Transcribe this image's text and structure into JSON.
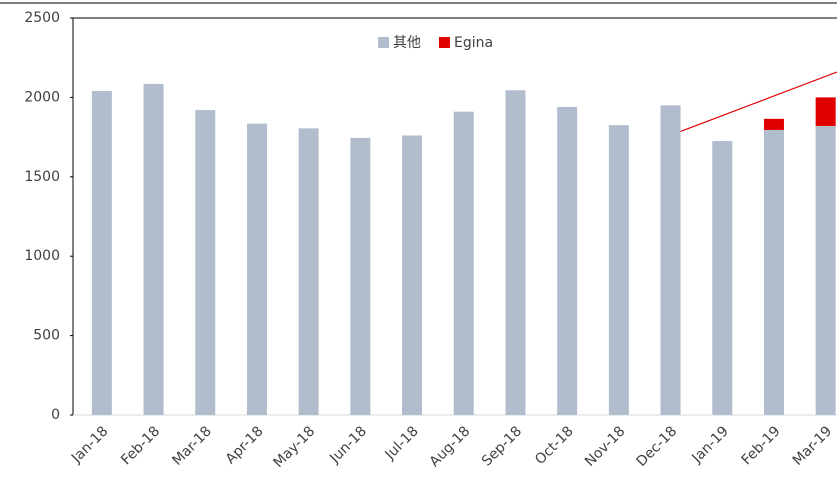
{
  "chart_data": {
    "type": "stacked_bar",
    "categories": [
      "Jan-18",
      "Feb-18",
      "Mar-18",
      "Apr-18",
      "May-18",
      "Jun-18",
      "Jul-18",
      "Aug-18",
      "Sep-18",
      "Oct-18",
      "Nov-18",
      "Dec-18",
      "Jan-19",
      "Feb-19",
      "Mar-19"
    ],
    "series": [
      {
        "name": "其他",
        "color": "#b1bccc",
        "values": [
          2040,
          2085,
          1920,
          1835,
          1805,
          1745,
          1760,
          1910,
          2045,
          1940,
          1825,
          1950,
          1725,
          1795,
          1820
        ]
      },
      {
        "name": "Egina",
        "color": "#e00000",
        "values": [
          null,
          null,
          null,
          null,
          null,
          null,
          null,
          null,
          null,
          null,
          null,
          null,
          null,
          70,
          180
        ]
      }
    ],
    "ylim": [
      0,
      2500
    ],
    "yticks": [
      0,
      500,
      1000,
      1500,
      2000,
      2500
    ],
    "legend": "top"
  }
}
